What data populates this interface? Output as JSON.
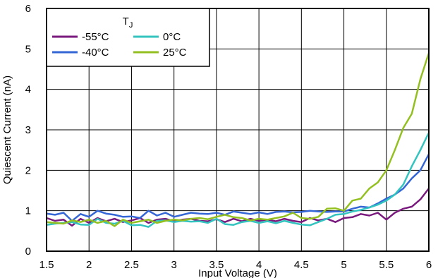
{
  "chart_data": {
    "type": "line",
    "xlabel": "Input Voltage (V)",
    "ylabel": "Quiescent Current (nA)",
    "xlim": [
      1.5,
      6
    ],
    "ylim": [
      0,
      6
    ],
    "x_ticks": [
      "1.5",
      "2",
      "2.5",
      "3",
      "3.5",
      "4",
      "4.5",
      "5",
      "5.5",
      "6"
    ],
    "y_ticks": [
      "0",
      "1",
      "2",
      "3",
      "4",
      "5",
      "6"
    ],
    "grid": true,
    "legend_placement": "top-left",
    "legend_title": "T",
    "legend_title_subscript": "J",
    "x": [
      1.5,
      1.6,
      1.7,
      1.8,
      1.9,
      2.0,
      2.1,
      2.2,
      2.3,
      2.4,
      2.5,
      2.6,
      2.7,
      2.8,
      2.9,
      3.0,
      3.1,
      3.2,
      3.3,
      3.4,
      3.5,
      3.6,
      3.7,
      3.8,
      3.9,
      4.0,
      4.1,
      4.2,
      4.3,
      4.4,
      4.5,
      4.6,
      4.7,
      4.8,
      4.9,
      5.0,
      5.1,
      5.2,
      5.3,
      5.4,
      5.5,
      5.6,
      5.7,
      5.8,
      5.9,
      6.0
    ],
    "series": [
      {
        "name": "-55°C",
        "color": "#7a1a7e",
        "values": [
          0.82,
          0.75,
          0.78,
          0.63,
          0.8,
          0.7,
          0.82,
          0.74,
          0.8,
          0.72,
          0.76,
          0.82,
          0.7,
          0.78,
          0.8,
          0.74,
          0.78,
          0.8,
          0.75,
          0.74,
          0.79,
          0.72,
          0.8,
          0.74,
          0.8,
          0.75,
          0.78,
          0.74,
          0.8,
          0.75,
          0.72,
          0.82,
          0.76,
          0.8,
          0.72,
          0.82,
          0.84,
          0.92,
          0.88,
          0.95,
          0.78,
          0.95,
          1.05,
          1.1,
          1.28,
          1.55
        ]
      },
      {
        "name": "-40°C",
        "color": "#3566d6",
        "values": [
          0.93,
          0.9,
          0.95,
          0.75,
          0.92,
          0.85,
          1.0,
          0.93,
          0.9,
          0.85,
          0.86,
          0.82,
          1.0,
          0.88,
          0.95,
          0.85,
          0.9,
          0.95,
          0.93,
          0.92,
          0.95,
          0.9,
          0.98,
          0.95,
          0.92,
          0.96,
          0.92,
          0.97,
          0.98,
          0.96,
          0.97,
          1.0,
          0.98,
          0.97,
          0.98,
          0.98,
          1.05,
          1.1,
          1.08,
          1.18,
          1.3,
          1.4,
          1.55,
          1.8,
          2.0,
          2.4
        ]
      },
      {
        "name": "0°C",
        "color": "#33c4c0",
        "values": [
          0.65,
          0.68,
          0.7,
          0.72,
          0.66,
          0.65,
          0.8,
          0.7,
          0.68,
          0.75,
          0.64,
          0.65,
          0.6,
          0.75,
          0.76,
          0.72,
          0.75,
          0.73,
          0.74,
          0.7,
          0.8,
          0.67,
          0.65,
          0.72,
          0.75,
          0.7,
          0.74,
          0.69,
          0.75,
          0.7,
          0.66,
          0.64,
          0.72,
          0.8,
          0.9,
          0.92,
          0.98,
          1.02,
          1.08,
          1.15,
          1.25,
          1.4,
          1.65,
          2.1,
          2.5,
          2.93
        ]
      },
      {
        "name": "25°C",
        "color": "#93c020",
        "values": [
          0.72,
          0.7,
          0.68,
          0.76,
          0.72,
          0.78,
          0.7,
          0.75,
          0.62,
          0.78,
          0.7,
          0.74,
          0.78,
          0.7,
          0.75,
          0.78,
          0.76,
          0.8,
          0.82,
          0.79,
          0.85,
          0.9,
          0.84,
          0.82,
          0.76,
          0.8,
          0.78,
          0.82,
          0.86,
          0.95,
          0.82,
          0.8,
          0.85,
          1.05,
          1.06,
          1.0,
          1.25,
          1.3,
          1.55,
          1.7,
          2.0,
          2.5,
          3.05,
          3.4,
          4.25,
          4.9
        ]
      }
    ]
  }
}
